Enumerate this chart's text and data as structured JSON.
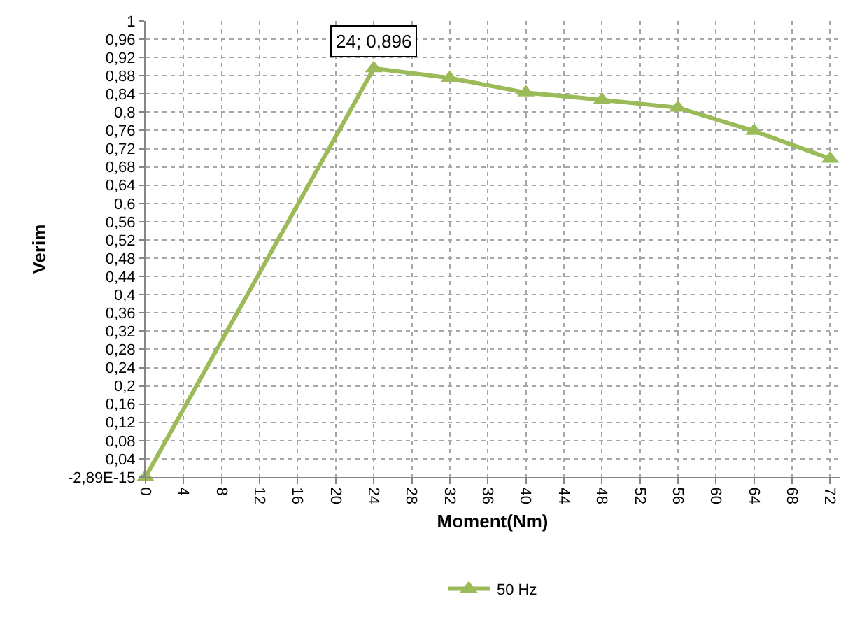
{
  "chart_data": {
    "type": "line",
    "xlabel": "Moment(Nm)",
    "ylabel": "Verim",
    "x": [
      0,
      24,
      32,
      40,
      48,
      56,
      64,
      72
    ],
    "series": [
      {
        "name": "50 Hz",
        "color": "#9bbb59",
        "values": [
          0,
          0.896,
          0.875,
          0.843,
          0.827,
          0.81,
          0.759,
          0.698
        ]
      }
    ],
    "xlim": [
      0,
      73
    ],
    "xticks": [
      0,
      4,
      8,
      12,
      16,
      20,
      24,
      28,
      32,
      36,
      40,
      44,
      48,
      52,
      56,
      60,
      64,
      68,
      72
    ],
    "ylim": [
      0,
      1
    ],
    "yticks": [
      {
        "value": 0,
        "label": "-2,89E-15"
      },
      {
        "value": 0.04,
        "label": "0,04"
      },
      {
        "value": 0.08,
        "label": "0,08"
      },
      {
        "value": 0.12,
        "label": "0,12"
      },
      {
        "value": 0.16,
        "label": "0,16"
      },
      {
        "value": 0.2,
        "label": "0,2"
      },
      {
        "value": 0.24,
        "label": "0,24"
      },
      {
        "value": 0.28,
        "label": "0,28"
      },
      {
        "value": 0.32,
        "label": "0,32"
      },
      {
        "value": 0.36,
        "label": "0,36"
      },
      {
        "value": 0.4,
        "label": "0,4"
      },
      {
        "value": 0.44,
        "label": "0,44"
      },
      {
        "value": 0.48,
        "label": "0,48"
      },
      {
        "value": 0.52,
        "label": "0,52"
      },
      {
        "value": 0.56,
        "label": "0,56"
      },
      {
        "value": 0.6,
        "label": "0,6"
      },
      {
        "value": 0.64,
        "label": "0,64"
      },
      {
        "value": 0.68,
        "label": "0,68"
      },
      {
        "value": 0.72,
        "label": "0,72"
      },
      {
        "value": 0.76,
        "label": "0,76"
      },
      {
        "value": 0.8,
        "label": "0,8"
      },
      {
        "value": 0.84,
        "label": "0,84"
      },
      {
        "value": 0.88,
        "label": "0,88"
      },
      {
        "value": 0.92,
        "label": "0,92"
      },
      {
        "value": 0.96,
        "label": "0,96"
      },
      {
        "value": 1,
        "label": "1"
      }
    ],
    "annotations": [
      {
        "text": "24; 0,896",
        "x": 24,
        "y": 0.896
      }
    ],
    "grid": true,
    "legend": "bottom",
    "marker": "triangle",
    "line_style": "solid"
  }
}
